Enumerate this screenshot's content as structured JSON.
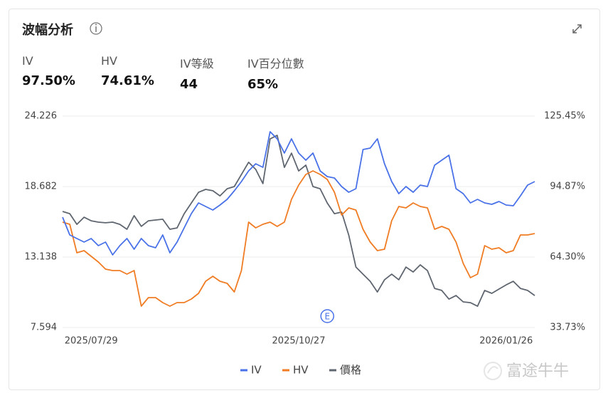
{
  "header": {
    "title": "波幅分析"
  },
  "stats": [
    {
      "label": "IV",
      "value": "97.50%"
    },
    {
      "label": "HV",
      "value": "74.61%"
    },
    {
      "label": "IV等級",
      "value": "44"
    },
    {
      "label": "IV百分位數",
      "value": "65%"
    }
  ],
  "watermark": "富途牛牛",
  "chart_data": {
    "type": "line",
    "grid": true,
    "annotation": "E",
    "categories": [
      null,
      null,
      null,
      null,
      "2025/07/29",
      null,
      null,
      null,
      null,
      null,
      null,
      null,
      null,
      null,
      null,
      null,
      null,
      null,
      null,
      null,
      null,
      null,
      null,
      null,
      null,
      null,
      null,
      null,
      null,
      null,
      null,
      null,
      null,
      "2025/10/27",
      null,
      null,
      null,
      null,
      null,
      null,
      null,
      null,
      null,
      null,
      null,
      null,
      null,
      null,
      null,
      null,
      null,
      null,
      null,
      null,
      null,
      null,
      null,
      null,
      null,
      null,
      null,
      null,
      "2026/01/26",
      null,
      null,
      null,
      null
    ],
    "ylim": [
      7.594,
      24.226
    ],
    "yticks": [
      7.594,
      13.138,
      18.682,
      24.226
    ],
    "y2lim": [
      33.73,
      125.45
    ],
    "y2ticks": [
      {
        "value": 33.73,
        "label": "33.73%"
      },
      {
        "value": 64.3,
        "label": "64.30%"
      },
      {
        "value": 94.87,
        "label": "94.87%"
      },
      {
        "value": 125.45,
        "label": "125.45%"
      }
    ],
    "series": [
      {
        "name": "IV",
        "color": "#4a72e8",
        "axis": "y2",
        "values": [
          81.6,
          73.88,
          72.34,
          70.79,
          72.34,
          69.25,
          70.79,
          65.23,
          69.25,
          72.34,
          67.7,
          72.34,
          69.25,
          68.32,
          73.88,
          66.16,
          70.79,
          76.97,
          83.14,
          87.78,
          86.23,
          84.69,
          86.85,
          89.32,
          93.03,
          97.04,
          101.67,
          104.76,
          103.22,
          118.66,
          115.57,
          109.39,
          115.57,
          109.39,
          106.3,
          109.39,
          101.67,
          99.2,
          98.58,
          94.88,
          92.41,
          93.95,
          110.94,
          111.55,
          115.57,
          104.76,
          97.04,
          91.79,
          94.88,
          92.41,
          95.5,
          94.88,
          104.14,
          106.3,
          108.47,
          93.95,
          91.79,
          87.78,
          89.32,
          87.78,
          87.16,
          88.39,
          86.85,
          86.54,
          90.86,
          95.5,
          97.04
        ]
      },
      {
        "name": "HV",
        "color": "#f07c24",
        "axis": "y2",
        "values": [
          79.44,
          78.51,
          66.16,
          67.09,
          64.62,
          62.15,
          59.06,
          58.44,
          58.44,
          56.9,
          58.44,
          43.0,
          46.71,
          46.71,
          44.54,
          43.0,
          44.54,
          44.54,
          46.09,
          48.56,
          53.81,
          55.97,
          53.81,
          52.88,
          49.18,
          58.44,
          79.44,
          76.97,
          78.51,
          79.44,
          77.59,
          79.44,
          89.32,
          95.5,
          100.13,
          101.67,
          100.13,
          97.97,
          92.41,
          82.53,
          85.61,
          84.69,
          76.35,
          70.79,
          67.09,
          67.7,
          80.06,
          86.23,
          85.61,
          87.78,
          86.23,
          85.61,
          76.35,
          77.59,
          76.35,
          70.79,
          61.53,
          55.35,
          56.9,
          69.25,
          67.7,
          68.32,
          66.16,
          67.09,
          73.88,
          73.88,
          74.5
        ]
      },
      {
        "name": "價格",
        "color": "#5f6670",
        "values": [
          16.72,
          16.55,
          15.71,
          16.27,
          15.99,
          15.88,
          15.83,
          15.88,
          15.71,
          15.32,
          16.39,
          15.55,
          15.99,
          16.05,
          16.11,
          15.32,
          15.43,
          16.55,
          17.39,
          18.23,
          18.46,
          18.35,
          17.95,
          18.51,
          18.68,
          19.63,
          20.59,
          20.03,
          18.91,
          22.43,
          22.71,
          20.19,
          21.31,
          19.91,
          20.36,
          18.68,
          18.51,
          17.39,
          16.55,
          16.67,
          14.87,
          12.35,
          11.79,
          11.23,
          10.39,
          11.35,
          11.79,
          11.35,
          12.35,
          11.96,
          12.52,
          12.07,
          10.67,
          10.51,
          9.83,
          10.11,
          9.61,
          9.55,
          9.27,
          10.51,
          10.28,
          10.62,
          10.95,
          11.23,
          10.67,
          10.51,
          10.11
        ]
      }
    ]
  }
}
